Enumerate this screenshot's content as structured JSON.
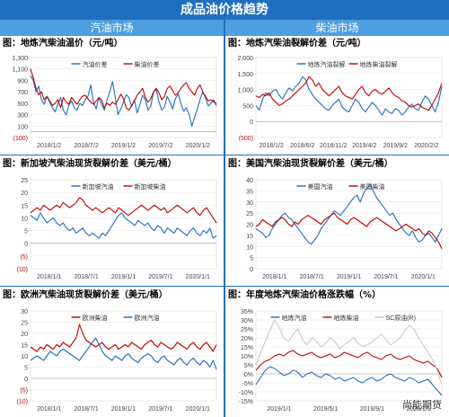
{
  "header": {
    "title": "成品油价格趋势",
    "left_column": "汽油市场",
    "right_column": "柴油市场",
    "watermark": "尚能期货"
  },
  "chart_data": [
    {
      "id": "p1",
      "type": "line",
      "title": "图：地炼汽柴油温价（元/吨）",
      "ylim": [
        -100,
        1300
      ],
      "yticks": [
        "1,300",
        "1,100",
        "900",
        "700",
        "500",
        "300",
        "100",
        "(100)"
      ],
      "ytick_values": [
        1300,
        1100,
        900,
        700,
        500,
        300,
        100,
        -100
      ],
      "red_ticks": [
        "(100)"
      ],
      "xticks": [
        "2018/1/2",
        "2018/7/2",
        "2019/1/2",
        "2019/7/2",
        "2020/1/2"
      ],
      "legend": "top-center",
      "series": [
        {
          "name": "汽油价差",
          "color": "#1f6fbf",
          "values": [
            980,
            900,
            700,
            800,
            560,
            480,
            620,
            520,
            420,
            350,
            480,
            600,
            380,
            300,
            460,
            540,
            420,
            380,
            500,
            460,
            560,
            620,
            820,
            520,
            400,
            600,
            480,
            380,
            560,
            700,
            880,
            600,
            300,
            400,
            520,
            650,
            600,
            440,
            560,
            330,
            480,
            640,
            560,
            380,
            450,
            700,
            740,
            520,
            380,
            440,
            620,
            520,
            400,
            580,
            660,
            500,
            360,
            420,
            300,
            100,
            250,
            400,
            560,
            700,
            600,
            450,
            500,
            560,
            450
          ]
        },
        {
          "name": "柴油价差",
          "color": "#c00000",
          "values": [
            1100,
            950,
            760,
            650,
            700,
            560,
            620,
            540,
            460,
            500,
            560,
            420,
            600,
            520,
            480,
            600,
            540,
            480,
            560,
            620,
            640,
            580,
            520,
            480,
            540,
            600,
            560,
            420,
            500,
            460,
            520,
            480,
            560,
            660,
            580,
            420,
            380,
            460,
            540,
            640,
            700,
            760,
            600,
            520,
            580,
            700,
            760,
            680,
            560,
            620,
            760,
            800,
            720,
            640,
            680,
            760,
            820,
            860,
            760,
            700,
            640,
            760,
            820,
            700,
            620,
            540,
            560,
            520,
            500
          ]
        }
      ]
    },
    {
      "id": "p2",
      "type": "line",
      "title": "图：地炼汽柴油裂解价差（元/吨）",
      "ylim": [
        -500,
        2000
      ],
      "yticks": [
        "2,000",
        "1,500",
        "1,000",
        "500",
        "0",
        "(500)"
      ],
      "ytick_values": [
        2000,
        1500,
        1000,
        500,
        0,
        -500
      ],
      "red_ticks": [
        "(500)"
      ],
      "xticks": [
        "2018/1/2",
        "2018/6/2",
        "2018/11/2",
        "2019/4/2",
        "2019/9/2",
        "2020/2/2"
      ],
      "legend": "top-center",
      "series": [
        {
          "name": "地炼汽油裂解",
          "color": "#1f6fbf",
          "values": [
            500,
            350,
            700,
            900,
            800,
            950,
            1000,
            820,
            700,
            900,
            1050,
            950,
            1100,
            1200,
            1400,
            1300,
            1000,
            850,
            700,
            600,
            500,
            400,
            350,
            500,
            600,
            700,
            450,
            350,
            300,
            500,
            700,
            600,
            400,
            300,
            450,
            600,
            500,
            350,
            200,
            400,
            300,
            250,
            400,
            350,
            200,
            300,
            450,
            550,
            400,
            350,
            600,
            800,
            700,
            500,
            300,
            600,
            1100
          ]
        },
        {
          "name": "地炼柴油裂解",
          "color": "#c00000",
          "values": [
            800,
            750,
            850,
            800,
            900,
            700,
            600,
            500,
            550,
            650,
            700,
            800,
            900,
            1000,
            1100,
            1200,
            1400,
            1300,
            1100,
            1200,
            1000,
            900,
            800,
            900,
            1000,
            1100,
            900,
            800,
            750,
            700,
            850,
            1000,
            1100,
            900,
            800,
            950,
            1000,
            900,
            850,
            950,
            1050,
            900,
            800,
            750,
            650,
            600,
            500,
            450,
            500,
            550,
            450,
            400,
            350,
            500,
            700,
            900,
            1200
          ]
        }
      ]
    },
    {
      "id": "p3",
      "type": "line",
      "title": "图：新加坡汽柴油现货裂解价差（美元/桶）",
      "ylim": [
        -10,
        25
      ],
      "yticks": [
        "25",
        "20",
        "15",
        "10",
        "5",
        "0",
        "(5)",
        "(10)"
      ],
      "ytick_values": [
        25,
        20,
        15,
        10,
        5,
        0,
        -5,
        -10
      ],
      "red_ticks": [
        "(5)",
        "(10)"
      ],
      "xticks": [
        "2018/1/1",
        "2018/7/1",
        "2019/1/1",
        "2019/7/1",
        "2020/1/1"
      ],
      "legend": "top-center",
      "series": [
        {
          "name": "新加坡汽油",
          "color": "#1f6fbf",
          "values": [
            11,
            10,
            9,
            12,
            10,
            8,
            9,
            10,
            8,
            7,
            8,
            6,
            5,
            6,
            4,
            5,
            6,
            4,
            3,
            4,
            3,
            2,
            4,
            3,
            5,
            7,
            9,
            11,
            12,
            10,
            9,
            8,
            7,
            9,
            8,
            7,
            8,
            6,
            5,
            7,
            6,
            4,
            6,
            5,
            4,
            6,
            5,
            4,
            3,
            5,
            6,
            4,
            3,
            5,
            4,
            6,
            2,
            3
          ]
        },
        {
          "name": "新加坡柴油",
          "color": "#c00000",
          "values": [
            12,
            13,
            14,
            13,
            15,
            14,
            13,
            14,
            15,
            14,
            16,
            15,
            14,
            15,
            16,
            18,
            17,
            15,
            14,
            13,
            14,
            13,
            12,
            13,
            14,
            13,
            12,
            14,
            13,
            12,
            11,
            12,
            13,
            14,
            15,
            14,
            13,
            14,
            15,
            14,
            13,
            14,
            12,
            13,
            14,
            15,
            14,
            13,
            12,
            13,
            14,
            12,
            11,
            13,
            14,
            12,
            10,
            8
          ]
        }
      ]
    },
    {
      "id": "p4",
      "type": "line",
      "title": "图：美国汽柴油现货裂解价差（美元/桶）",
      "ylim": [
        0,
        40
      ],
      "yticks": [
        "40",
        "35",
        "30",
        "25",
        "20",
        "15",
        "10",
        "5",
        "0"
      ],
      "ytick_values": [
        40,
        35,
        30,
        25,
        20,
        15,
        10,
        5,
        0
      ],
      "red_ticks": [],
      "xticks": [
        "2018/1/1",
        "2018/7/1",
        "2019/1/1",
        "2019/7/1",
        "2020/1/1"
      ],
      "legend": "top-center",
      "series": [
        {
          "name": "美国汽油",
          "color": "#1f6fbf",
          "values": [
            18,
            17,
            16,
            14,
            15,
            18,
            20,
            22,
            24,
            25,
            23,
            22,
            20,
            18,
            16,
            14,
            12,
            11,
            13,
            15,
            18,
            20,
            22,
            24,
            26,
            25,
            24,
            26,
            28,
            30,
            32,
            33,
            30,
            34,
            36,
            38,
            35,
            32,
            30,
            28,
            26,
            24,
            25,
            22,
            20,
            18,
            16,
            15,
            17,
            14,
            12,
            13,
            15,
            16,
            14,
            12,
            15,
            18
          ]
        },
        {
          "name": "美国柴油",
          "color": "#c00000",
          "values": [
            19,
            20,
            22,
            21,
            20,
            19,
            21,
            22,
            23,
            22,
            20,
            19,
            21,
            20,
            22,
            23,
            24,
            23,
            22,
            21,
            20,
            22,
            23,
            24,
            25,
            23,
            22,
            21,
            20,
            22,
            23,
            22,
            21,
            20,
            19,
            21,
            22,
            23,
            22,
            21,
            20,
            19,
            18,
            17,
            18,
            19,
            20,
            19,
            18,
            17,
            18,
            16,
            15,
            17,
            16,
            14,
            12,
            9
          ]
        }
      ]
    },
    {
      "id": "p5",
      "type": "line",
      "title": "图：欧洲汽柴油现货裂解价差（美元/桶）",
      "ylim": [
        -10,
        30
      ],
      "yticks": [
        "30",
        "25",
        "20",
        "15",
        "10",
        "5",
        "0",
        "(5)",
        "(10)"
      ],
      "ytick_values": [
        30,
        25,
        20,
        15,
        10,
        5,
        0,
        -5,
        -10
      ],
      "red_ticks": [
        "(5)",
        "(10)"
      ],
      "xticks": [
        "2018/1/1",
        "2018/7/1",
        "2019/1/1",
        "2019/7/1",
        "2020/1/1"
      ],
      "legend": "top-center",
      "series": [
        {
          "name": "欧洲柴油",
          "color": "#c00000",
          "values": [
            14,
            13,
            12,
            14,
            13,
            15,
            14,
            13,
            15,
            14,
            16,
            15,
            14,
            16,
            18,
            24,
            20,
            17,
            16,
            15,
            14,
            15,
            16,
            14,
            13,
            14,
            15,
            13,
            14,
            15,
            14,
            16,
            15,
            14,
            13,
            15,
            16,
            17,
            15,
            14,
            16,
            15,
            14,
            13,
            14,
            16,
            15,
            14,
            13,
            15,
            16,
            14,
            13,
            15,
            16,
            14,
            12,
            15
          ]
        },
        {
          "name": "欧洲汽油",
          "color": "#1f6fbf",
          "values": [
            8,
            9,
            10,
            9,
            8,
            10,
            12,
            11,
            10,
            12,
            13,
            12,
            11,
            10,
            9,
            8,
            10,
            12,
            14,
            16,
            18,
            15,
            12,
            10,
            9,
            8,
            10,
            9,
            8,
            10,
            11,
            9,
            8,
            7,
            9,
            10,
            11,
            10,
            8,
            7,
            9,
            10,
            8,
            7,
            6,
            8,
            9,
            7,
            6,
            8,
            9,
            7,
            6,
            8,
            7,
            5,
            8,
            4
          ]
        }
      ]
    },
    {
      "id": "p6",
      "type": "line",
      "title": "图：年度地炼汽柴油价格涨跌幅（%）",
      "ylim": [
        -15,
        35
      ],
      "yticks": [
        "35%",
        "30%",
        "25%",
        "20%",
        "15%",
        "10%",
        "5%",
        "0%",
        "-5%",
        "-10%",
        "-15%"
      ],
      "ytick_values": [
        35,
        30,
        25,
        20,
        15,
        10,
        5,
        0,
        -5,
        -10,
        -15
      ],
      "red_ticks": [],
      "xticks": [
        "2019/1/1",
        "2019/5/1",
        "2019/9/1",
        "2020/1/1"
      ],
      "legend": "top-center",
      "series": [
        {
          "name": "地炼汽油",
          "color": "#1f6fbf",
          "values": [
            -6,
            -2,
            2,
            4,
            3,
            1,
            -1,
            0,
            2,
            1,
            -2,
            0,
            1,
            -1,
            -2,
            0,
            -1,
            -3,
            -2,
            -4,
            -3,
            -2,
            -4,
            -5,
            -3,
            -2,
            -4,
            -3,
            -1,
            0,
            -2,
            -3,
            -4,
            -2,
            -3,
            -5,
            -4,
            -3,
            -6,
            -9,
            -12
          ]
        },
        {
          "name": "地炼柴油",
          "color": "#c00000",
          "values": [
            2,
            5,
            7,
            8,
            10,
            11,
            10,
            12,
            13,
            11,
            10,
            11,
            12,
            10,
            9,
            10,
            11,
            9,
            10,
            12,
            11,
            10,
            9,
            11,
            12,
            10,
            9,
            8,
            10,
            11,
            9,
            8,
            9,
            10,
            8,
            7,
            6,
            7,
            5,
            3,
            -2
          ]
        },
        {
          "name": "SC原油(R)",
          "color": "#c8c8c8",
          "values": [
            5,
            12,
            18,
            24,
            30,
            26,
            20,
            18,
            22,
            25,
            19,
            16,
            20,
            18,
            15,
            17,
            20,
            18,
            14,
            16,
            18,
            20,
            17,
            15,
            16,
            18,
            20,
            22,
            19,
            16,
            18,
            20,
            24,
            27,
            25,
            20,
            16,
            12,
            8,
            2,
            -6
          ]
        }
      ]
    }
  ]
}
